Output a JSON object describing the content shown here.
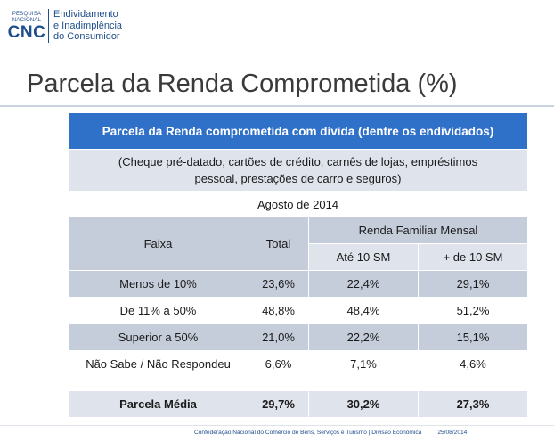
{
  "logo": {
    "small_line1": "PESQUISA",
    "small_line2": "NACIONAL",
    "brand": "CNC",
    "line1": "Endividamento",
    "line2": "e Inadimplência",
    "line3": "do Consumidor"
  },
  "title": "Parcela da Renda Comprometida (%)",
  "table": {
    "header": "Parcela da Renda comprometida com dívida (dentre os endividados)",
    "subheader_line1": "(Cheque pré-datado, cartões de crédito, carnês de lojas, empréstimos",
    "subheader_line2": "pessoal, prestações de carro e seguros)",
    "period": "Agosto de 2014",
    "col_faixa": "Faixa",
    "col_total": "Total",
    "col_group": "Renda Familiar Mensal",
    "col_ate10": "Até 10 SM",
    "col_mais10": "+ de 10 SM",
    "rows": [
      {
        "faixa": "Menos de 10%",
        "total": "23,6%",
        "ate10": "22,4%",
        "mais10": "29,1%"
      },
      {
        "faixa": "De 11% a 50%",
        "total": "48,8%",
        "ate10": "48,4%",
        "mais10": "51,2%"
      },
      {
        "faixa": "Superior a 50%",
        "total": "21,0%",
        "ate10": "22,2%",
        "mais10": "15,1%"
      },
      {
        "faixa": "Não Sabe / Não Respondeu",
        "total": "6,6%",
        "ate10": "7,1%",
        "mais10": "4,6%"
      }
    ],
    "average": {
      "faixa": "Parcela Média",
      "total": "29,7%",
      "ate10": "30,2%",
      "mais10": "27,3%"
    }
  },
  "footer": {
    "text": "Confederação Nacional do Comércio de Bens, Serviços e Turismo | Divisão Econômica",
    "date": "25/08/2014"
  },
  "colors": {
    "brand": "#1f4e8c",
    "header_bg": "#2f70c8",
    "band_dark": "#c5cddb",
    "band_light": "#dfe3ec"
  }
}
